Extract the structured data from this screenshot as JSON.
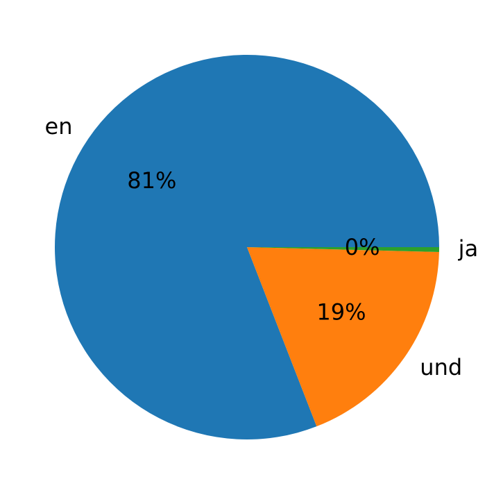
{
  "chart_data": {
    "type": "pie",
    "categories": [
      "en",
      "und",
      "ja"
    ],
    "values": [
      80.9,
      18.7,
      0.4
    ],
    "value_labels": [
      "81%",
      "19%",
      "0%"
    ],
    "colors": [
      "#1f77b4",
      "#ff7f0e",
      "#2ca02c"
    ]
  }
}
